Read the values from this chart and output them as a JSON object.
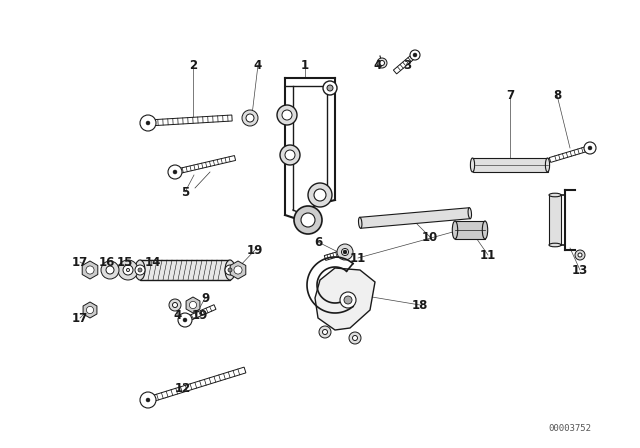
{
  "background_color": "#ffffff",
  "diagram_color": "#1a1a1a",
  "watermark": "00003752",
  "label_fontsize": 8.5,
  "line_width": 1.0
}
